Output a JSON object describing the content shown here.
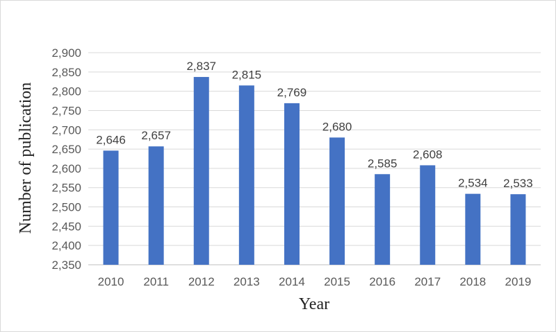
{
  "chart_data": {
    "type": "bar",
    "categories": [
      "2010",
      "2011",
      "2012",
      "2013",
      "2014",
      "2015",
      "2016",
      "2017",
      "2018",
      "2019"
    ],
    "values": [
      2646,
      2657,
      2837,
      2815,
      2769,
      2680,
      2585,
      2608,
      2534,
      2533
    ],
    "data_labels": [
      "2,646",
      "2,657",
      "2,837",
      "2,815",
      "2,769",
      "2,680",
      "2,585",
      "2,608",
      "2,534",
      "2,533"
    ],
    "xlabel": "Year",
    "ylabel": "Number of publication",
    "ylim": [
      2350,
      2900
    ],
    "ytick_step": 50,
    "ytick_labels": [
      "2,350",
      "2,400",
      "2,450",
      "2,500",
      "2,550",
      "2,600",
      "2,650",
      "2,700",
      "2,750",
      "2,800",
      "2,850",
      "2,900"
    ],
    "bar_color": "#4472c4",
    "grid": true,
    "legend": "none"
  }
}
